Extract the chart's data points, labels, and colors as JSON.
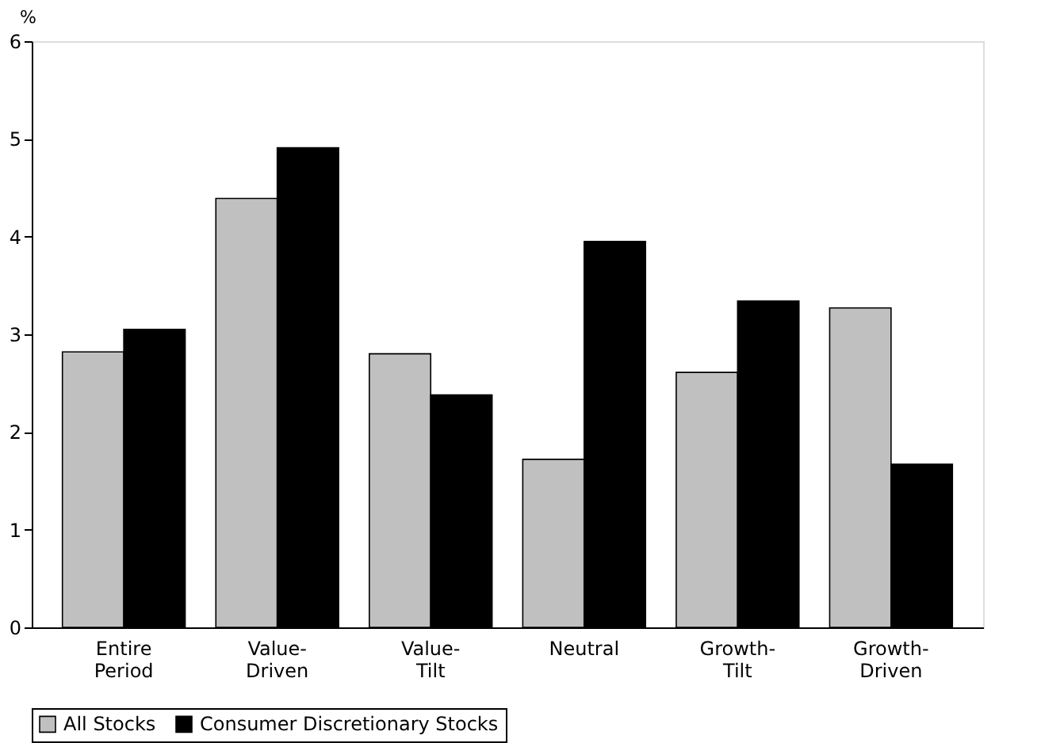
{
  "chart_data": {
    "type": "bar",
    "ylabel": "%",
    "categories": [
      "Entire Period",
      "Value-Driven",
      "Value-Tilt",
      "Neutral",
      "Growth-Tilt",
      "Growth-Driven"
    ],
    "series": [
      {
        "name": "All Stocks",
        "color": "#c0c0c0",
        "values": [
          2.82,
          4.39,
          2.8,
          1.72,
          2.61,
          3.27
        ]
      },
      {
        "name": "Consumer Discretionary Stocks",
        "color": "#000000",
        "values": [
          3.05,
          4.91,
          2.38,
          3.95,
          3.34,
          1.67
        ]
      }
    ],
    "ylim": [
      0,
      6
    ],
    "yticks": [
      0,
      1,
      2,
      3,
      4,
      5,
      6
    ],
    "grid": false,
    "legend": "bottom"
  }
}
